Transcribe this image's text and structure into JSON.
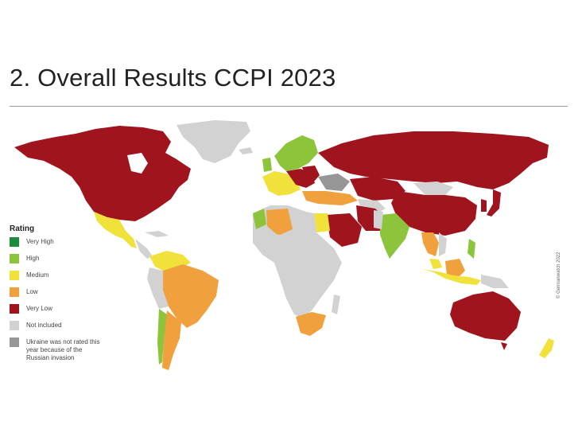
{
  "title": "2. Overall Results CCPI 2023",
  "legend": {
    "title": "Rating",
    "items": [
      {
        "label": "Very High",
        "color": "#1e8a3c"
      },
      {
        "label": "High",
        "color": "#8cc43c"
      },
      {
        "label": "Medium",
        "color": "#f0e23a"
      },
      {
        "label": "Low",
        "color": "#f0a03c"
      },
      {
        "label": "Very Low",
        "color": "#a0141e"
      },
      {
        "label": "Not included",
        "color": "#d2d2d2"
      },
      {
        "label": "Ukraine was not rated this year because of the Russian invasion",
        "color": "#969696"
      }
    ]
  },
  "credit": "© Germanwatch 2022",
  "colors": {
    "very_low": "#a0141e",
    "low": "#f0a03c",
    "medium": "#f0e23a",
    "high": "#8cc43c",
    "very_high": "#1e8a3c",
    "not_included": "#d2d2d2",
    "not_rated": "#969696"
  }
}
